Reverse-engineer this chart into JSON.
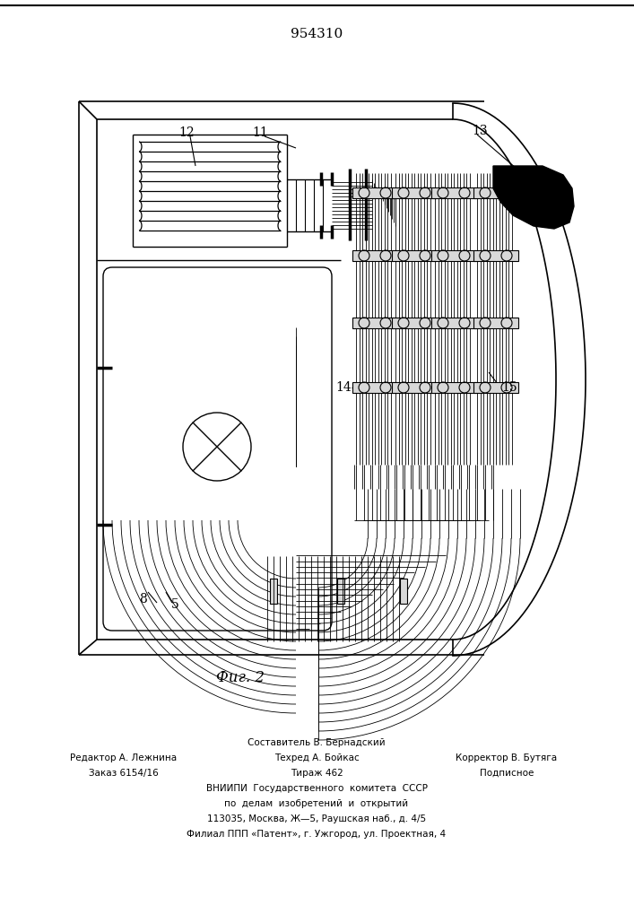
{
  "title": "954310",
  "fig_label": "Фиг. 2",
  "background_color": "#ffffff",
  "footer": {
    "line1_center": "Составитель В. Бернадский",
    "line2_left": "Редактор А. Лежнина",
    "line2_center": "Техред А. Бойкас",
    "line2_right": "Корректор В. Бутяга",
    "line3_left": "Заказ 6154/16",
    "line3_center": "Тираж 462",
    "line3_right": "Подписное",
    "line4": "ВНИИПИ  Государственного  комитета  СССР",
    "line5": "по  делам  изобретений  и  открытий",
    "line6": "113035, Москва, Ж—5, Раушская наб., д. 4/5",
    "line7": "Филиал ППП «Патент», г. Ужгород, ул. Проектная, 4"
  }
}
